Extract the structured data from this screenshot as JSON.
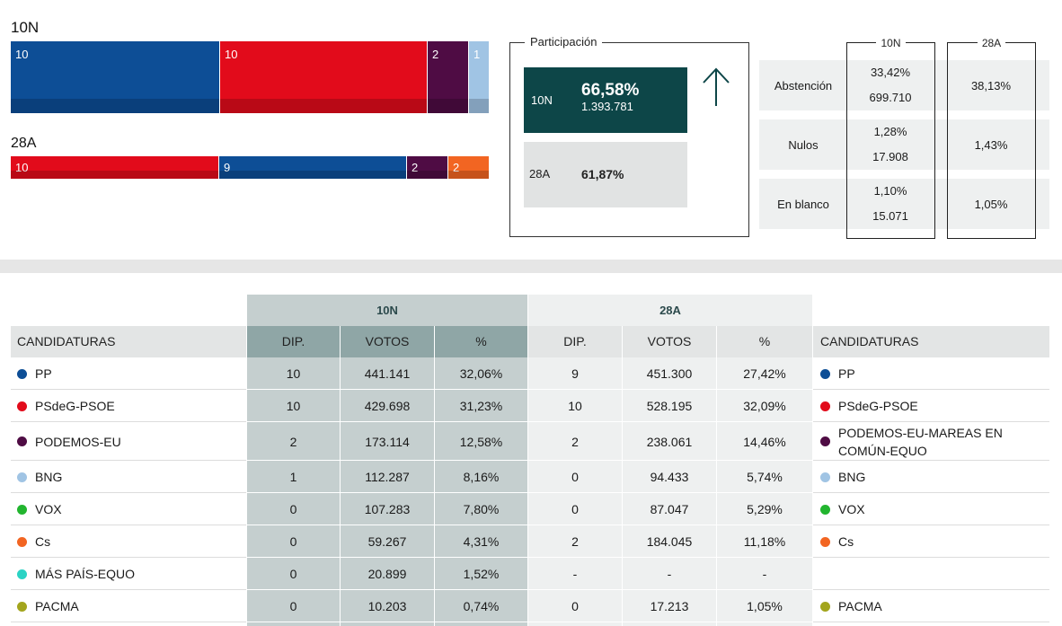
{
  "seats": {
    "now": {
      "label": "10N",
      "segments": [
        {
          "value": "10",
          "color": "#0d4e96"
        },
        {
          "value": "10",
          "color": "#e20b1b"
        },
        {
          "value": "2",
          "color": "#4f0c44"
        },
        {
          "value": "1",
          "color": "#a0c4e4"
        }
      ]
    },
    "prev": {
      "label": "28A",
      "segments": [
        {
          "value": "10",
          "color": "#e20b1b"
        },
        {
          "value": "9",
          "color": "#0d4e96"
        },
        {
          "value": "2",
          "color": "#4f0c44"
        },
        {
          "value": "2",
          "color": "#f26522"
        }
      ]
    }
  },
  "participation": {
    "title": "Participación",
    "now": {
      "label": "10N",
      "percent": "66,58%",
      "votes": "1.393.781"
    },
    "prev": {
      "label": "28A",
      "percent": "61,87%"
    },
    "trend_icon": "arrow-up-icon"
  },
  "abstention": {
    "col_now": "10N",
    "col_prev": "28A",
    "rows": [
      {
        "name": "Abstención",
        "now_pct": "33,42%",
        "now_num": "699.710",
        "prev_pct": "38,13%"
      },
      {
        "name": "Nulos",
        "now_pct": "1,28%",
        "now_num": "17.908",
        "prev_pct": "1,43%"
      },
      {
        "name": "En blanco",
        "now_pct": "1,10%",
        "now_num": "15.071",
        "prev_pct": "1,05%"
      }
    ]
  },
  "table": {
    "group_now": "10N",
    "group_prev": "28A",
    "header": {
      "candidaturas_left": "CANDIDATURAS",
      "candidaturas_right": "CANDIDATURAS",
      "dip": "DIP.",
      "votos": "VOTOS",
      "pct": "%"
    },
    "rows": [
      {
        "party": "PP",
        "color": "#0d4e96",
        "dip_now": "10",
        "votes_now": "441.141",
        "pct_now": "32,06%",
        "dip_prev": "9",
        "votes_prev": "451.300",
        "pct_prev": "27,42%",
        "party_prev": "PP",
        "color_prev": "#0d4e96"
      },
      {
        "party": "PSdeG-PSOE",
        "color": "#e20b1b",
        "dip_now": "10",
        "votes_now": "429.698",
        "pct_now": "31,23%",
        "dip_prev": "10",
        "votes_prev": "528.195",
        "pct_prev": "32,09%",
        "party_prev": "PSdeG-PSOE",
        "color_prev": "#e20b1b"
      },
      {
        "party": "PODEMOS-EU",
        "color": "#4f0c44",
        "dip_now": "2",
        "votes_now": "173.114",
        "pct_now": "12,58%",
        "dip_prev": "2",
        "votes_prev": "238.061",
        "pct_prev": "14,46%",
        "party_prev": "PODEMOS-EU-MAREAS EN COMÚN-EQUO",
        "color_prev": "#4f0c44"
      },
      {
        "party": "BNG",
        "color": "#a0c4e4",
        "dip_now": "1",
        "votes_now": "112.287",
        "pct_now": "8,16%",
        "dip_prev": "0",
        "votes_prev": "94.433",
        "pct_prev": "5,74%",
        "party_prev": "BNG",
        "color_prev": "#a0c4e4"
      },
      {
        "party": "VOX",
        "color": "#22b52f",
        "dip_now": "0",
        "votes_now": "107.283",
        "pct_now": "7,80%",
        "dip_prev": "0",
        "votes_prev": "87.047",
        "pct_prev": "5,29%",
        "party_prev": "VOX",
        "color_prev": "#22b52f"
      },
      {
        "party": "Cs",
        "color": "#f26522",
        "dip_now": "0",
        "votes_now": "59.267",
        "pct_now": "4,31%",
        "dip_prev": "2",
        "votes_prev": "184.045",
        "pct_prev": "11,18%",
        "party_prev": "Cs",
        "color_prev": "#f26522"
      },
      {
        "party": "MÁS PAÍS-EQUO",
        "color": "#2bd3c4",
        "dip_now": "0",
        "votes_now": "20.899",
        "pct_now": "1,52%",
        "dip_prev": "-",
        "votes_prev": "-",
        "pct_prev": "-",
        "party_prev": "",
        "color_prev": ""
      },
      {
        "party": "PACMA",
        "color": "#a3a51d",
        "dip_now": "0",
        "votes_now": "10.203",
        "pct_now": "0,74%",
        "dip_prev": "0",
        "votes_prev": "17.213",
        "pct_prev": "1,05%",
        "party_prev": "PACMA",
        "color_prev": "#a3a51d"
      }
    ]
  }
}
